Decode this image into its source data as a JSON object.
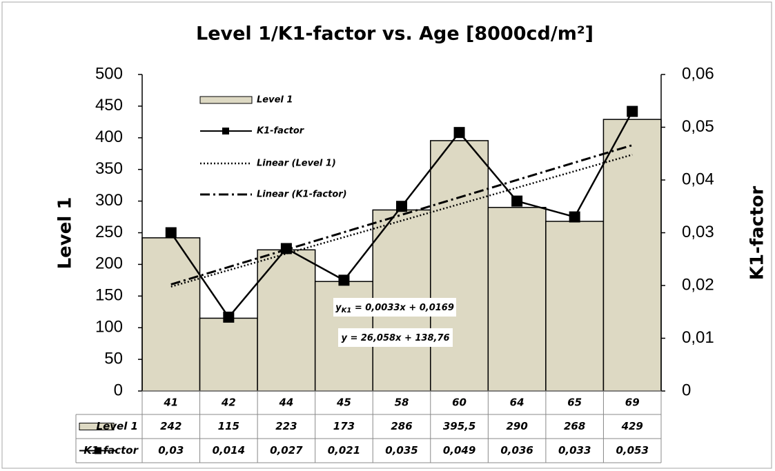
{
  "chart_data": {
    "type": "bar",
    "title": "Level 1/K1-factor vs. Age [8000cd/m²]",
    "y_label": "Level 1",
    "y2_label": "K1-factor",
    "categories": [
      "41",
      "42",
      "44",
      "45",
      "58",
      "60",
      "64",
      "65",
      "69"
    ],
    "series": [
      {
        "name": "Level 1",
        "type": "bar",
        "color": "#ddd9c3",
        "values": [
          242,
          115,
          223,
          173,
          286,
          395.5,
          290,
          268,
          429
        ],
        "value_labels": [
          "242",
          "115",
          "223",
          "173",
          "286",
          "395,5",
          "290",
          "268",
          "429"
        ]
      },
      {
        "name": "K1-factor",
        "type": "line",
        "axis": "y2",
        "color": "#000000",
        "values": [
          0.03,
          0.014,
          0.027,
          0.021,
          0.035,
          0.049,
          0.036,
          0.033,
          0.053
        ],
        "value_labels": [
          "0,03",
          "0,014",
          "0,027",
          "0,021",
          "0,035",
          "0,049",
          "0,036",
          "0,033",
          "0,053"
        ]
      }
    ],
    "trendlines": [
      {
        "name": "Linear (Level 1)",
        "slope": 26.058,
        "intercept": 138.76,
        "style": "dotted",
        "equation": {
          "variable": "y",
          "rest": " = 26,058x + 138,76"
        }
      },
      {
        "name": "Linear (K1-factor)",
        "axis": "y2",
        "slope": 0.0033,
        "intercept": 0.0169,
        "style": "dash-dot",
        "equation": {
          "variable": "y",
          "subscript": "K1",
          "rest": " = 0,0033x + 0,0169"
        }
      }
    ],
    "ylim": [
      0,
      500
    ],
    "yticks": [
      0,
      50,
      100,
      150,
      200,
      250,
      300,
      350,
      400,
      450,
      500
    ],
    "y2lim": [
      0,
      0.06
    ],
    "y2ticks": [
      0,
      {
        "value": 0.01,
        "label": "0,01"
      },
      {
        "value": 0.02,
        "label": "0,02"
      },
      {
        "value": 0.03,
        "label": "0,03"
      },
      {
        "value": 0.04,
        "label": "0,04"
      },
      {
        "value": 0.05,
        "label": "0,05"
      },
      {
        "value": 0.06,
        "label": "0,06"
      }
    ],
    "grid": false,
    "legend": "top-left",
    "data_table": true
  }
}
